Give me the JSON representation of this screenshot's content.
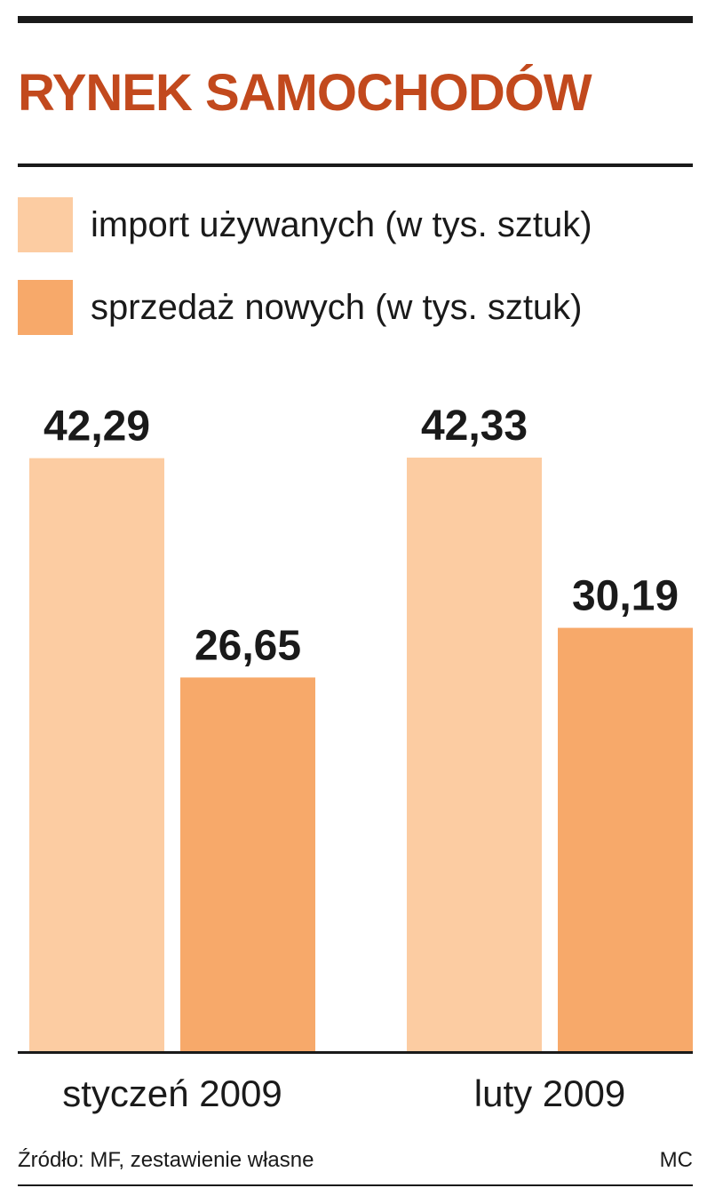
{
  "title": "RYNEK SAMOCHODÓW",
  "colors": {
    "title": "#c2491d",
    "series_import": "#fccca2",
    "series_sales": "#f7a96a",
    "text": "#1a1a1a"
  },
  "legend": [
    {
      "label": "import używanych (w tys. sztuk)",
      "color": "#fccca2"
    },
    {
      "label": "sprzedaż nowych (w tys. sztuk)",
      "color": "#f7a96a"
    }
  ],
  "chart_data": {
    "type": "bar",
    "categories": [
      "styczeń 2009",
      "luty 2009"
    ],
    "series": [
      {
        "name": "import używanych (w tys. sztuk)",
        "values": [
          42.29,
          42.33
        ],
        "labels": [
          "42,29",
          "42,33"
        ]
      },
      {
        "name": "sprzedaż nowych (w tys. sztuk)",
        "values": [
          26.65,
          30.19
        ],
        "labels": [
          "26,65",
          "30,19"
        ]
      }
    ],
    "ylim": [
      0,
      42.33
    ],
    "grid": false
  },
  "footer": {
    "source": "Źródło: MF, zestawienie własne",
    "author": "MC"
  }
}
